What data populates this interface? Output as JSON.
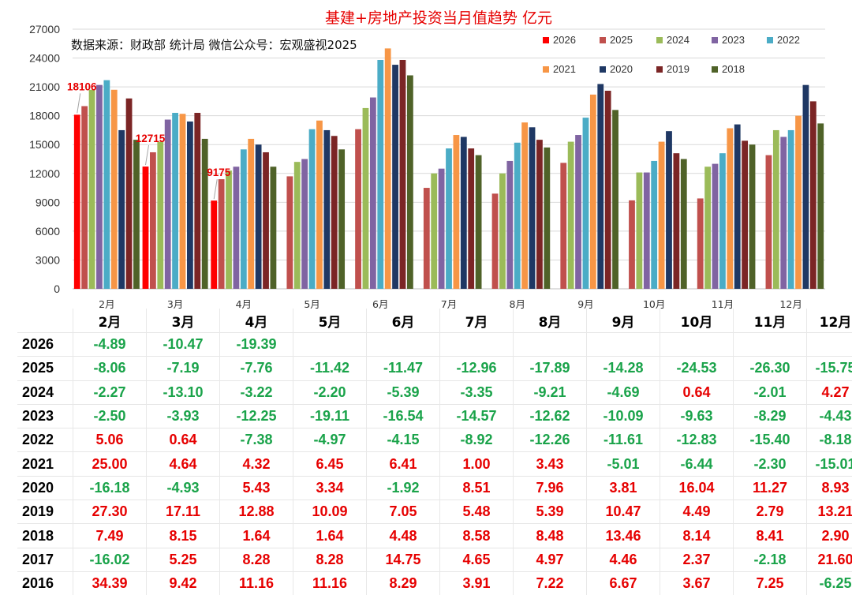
{
  "chart_data": {
    "type": "bar",
    "title": "基建+房地产投资当月值趋势 亿元",
    "source_note": "数据来源：财政部 统计局 微信公众号：宏观盛视2025",
    "categories": [
      "2月",
      "3月",
      "4月",
      "5月",
      "6月",
      "7月",
      "8月",
      "9月",
      "10月",
      "11月",
      "12月"
    ],
    "ylim": [
      0,
      27000
    ],
    "yticks": [
      0,
      3000,
      6000,
      9000,
      12000,
      15000,
      18000,
      21000,
      24000,
      27000
    ],
    "grid": true,
    "legend_position": "top-right",
    "series": [
      {
        "name": "2026",
        "color": "#ff0000",
        "values": [
          18106,
          12715,
          9175,
          null,
          null,
          null,
          null,
          null,
          null,
          null,
          null
        ]
      },
      {
        "name": "2025",
        "color": "#c0504d",
        "values": [
          19000,
          14200,
          11400,
          11700,
          16600,
          10500,
          9900,
          13100,
          9200,
          9400,
          13900
        ]
      },
      {
        "name": "2024",
        "color": "#9bbb59",
        "values": [
          20700,
          15300,
          12300,
          13200,
          18800,
          12000,
          12000,
          15300,
          12100,
          12700,
          16500
        ]
      },
      {
        "name": "2023",
        "color": "#8064a2",
        "values": [
          21200,
          17600,
          12700,
          13500,
          19900,
          12500,
          13300,
          16000,
          12100,
          13000,
          15800
        ]
      },
      {
        "name": "2022",
        "color": "#4bacc6",
        "values": [
          21700,
          18300,
          14500,
          16600,
          23800,
          14600,
          15200,
          17800,
          13300,
          14100,
          16500
        ]
      },
      {
        "name": "2021",
        "color": "#f79646",
        "values": [
          20700,
          18200,
          15600,
          17500,
          25000,
          16000,
          17300,
          20200,
          15300,
          16700,
          18000
        ]
      },
      {
        "name": "2020",
        "color": "#1f3864",
        "values": [
          16500,
          17400,
          15000,
          16500,
          23300,
          15800,
          16800,
          21300,
          16400,
          17100,
          21200
        ]
      },
      {
        "name": "2019",
        "color": "#7b2525",
        "values": [
          19800,
          18300,
          14200,
          15900,
          23800,
          14600,
          15500,
          20600,
          14100,
          15400,
          19500
        ]
      },
      {
        "name": "2018",
        "color": "#4f6228",
        "values": [
          15500,
          15600,
          12700,
          14500,
          22200,
          13900,
          14700,
          18600,
          13500,
          15000,
          17200
        ]
      }
    ],
    "data_labels": [
      {
        "series": "2026",
        "category": "2月",
        "text": "18106"
      },
      {
        "series": "2026",
        "category": "3月",
        "text": "12715"
      },
      {
        "series": "2026",
        "category": "4月",
        "text": "9175"
      }
    ]
  },
  "table": {
    "headers": [
      "2月",
      "3月",
      "4月",
      "5月",
      "6月",
      "7月",
      "8月",
      "9月",
      "10月",
      "11月",
      "12月"
    ],
    "rows": [
      {
        "year": "2026",
        "values": [
          "-4.89",
          "-10.47",
          "-19.39",
          "",
          "",
          "",
          "",
          "",
          "",
          "",
          ""
        ]
      },
      {
        "year": "2025",
        "values": [
          "-8.06",
          "-7.19",
          "-7.76",
          "-11.42",
          "-11.47",
          "-12.96",
          "-17.89",
          "-14.28",
          "-24.53",
          "-26.30",
          "-15.75"
        ]
      },
      {
        "year": "2024",
        "values": [
          "-2.27",
          "-13.10",
          "-3.22",
          "-2.20",
          "-5.39",
          "-3.35",
          "-9.21",
          "-4.69",
          "0.64",
          "-2.01",
          "4.27"
        ]
      },
      {
        "year": "2023",
        "values": [
          "-2.50",
          "-3.93",
          "-12.25",
          "-19.11",
          "-16.54",
          "-14.57",
          "-12.62",
          "-10.09",
          "-9.63",
          "-8.29",
          "-4.43"
        ]
      },
      {
        "year": "2022",
        "values": [
          "5.06",
          "0.64",
          "-7.38",
          "-4.97",
          "-4.15",
          "-8.92",
          "-12.26",
          "-11.61",
          "-12.83",
          "-15.40",
          "-8.18"
        ]
      },
      {
        "year": "2021",
        "values": [
          "25.00",
          "4.64",
          "4.32",
          "6.45",
          "6.41",
          "1.00",
          "3.43",
          "-5.01",
          "-6.44",
          "-2.30",
          "-15.01"
        ]
      },
      {
        "year": "2020",
        "values": [
          "-16.18",
          "-4.93",
          "5.43",
          "3.34",
          "-1.92",
          "8.51",
          "7.96",
          "3.81",
          "16.04",
          "11.27",
          "8.93"
        ]
      },
      {
        "year": "2019",
        "values": [
          "27.30",
          "17.11",
          "12.88",
          "10.09",
          "7.05",
          "5.48",
          "5.39",
          "10.47",
          "4.49",
          "2.79",
          "13.21"
        ]
      },
      {
        "year": "2018",
        "values": [
          "7.49",
          "8.15",
          "1.64",
          "1.64",
          "4.48",
          "8.58",
          "8.48",
          "13.46",
          "8.14",
          "8.41",
          "2.90"
        ]
      },
      {
        "year": "2017",
        "values": [
          "-16.02",
          "5.25",
          "8.28",
          "8.28",
          "14.75",
          "4.65",
          "4.97",
          "4.46",
          "2.37",
          "-2.18",
          "21.60"
        ]
      },
      {
        "year": "2016",
        "values": [
          "34.39",
          "9.42",
          "11.16",
          "11.16",
          "8.29",
          "3.91",
          "7.22",
          "6.67",
          "3.67",
          "7.25",
          "-6.25"
        ]
      }
    ]
  }
}
